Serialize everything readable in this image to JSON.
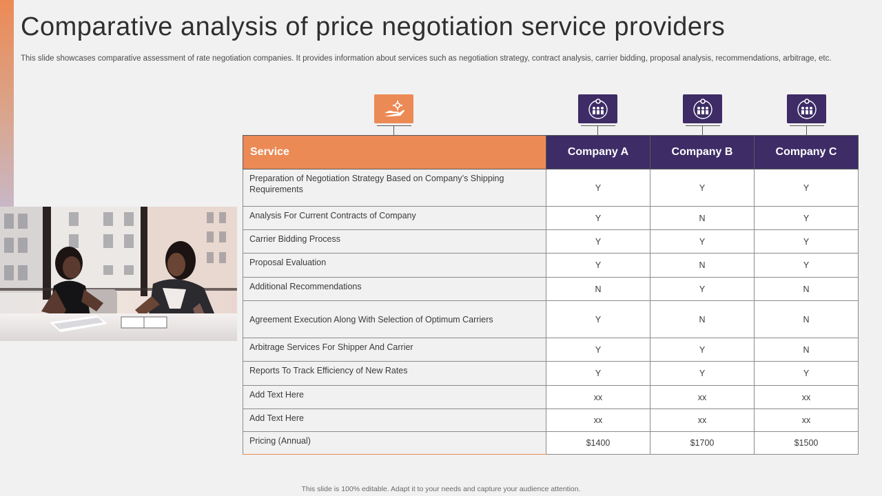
{
  "slide": {
    "title": "Comparative analysis of price negotiation service providers",
    "subtitle": "This slide showcases comparative assessment of rate negotiation companies. It provides information about services such as negotiation strategy, contract analysis, carrier bidding, proposal analysis, recommendations, arbitrage, etc.",
    "footer": "This slide is 100% editable.  Adapt it to your  needs and capture your audience attention."
  },
  "colors": {
    "accent": "#ec8a55",
    "company_header": "#3d2c66",
    "background": "#f1f1f1"
  },
  "icons": {
    "service": "hand-gear-icon",
    "company": "team-globe-gear-icon"
  },
  "table": {
    "header": {
      "service": "Service",
      "companies": [
        "Company A",
        "Company B",
        "Company C"
      ]
    },
    "rows": [
      {
        "service": "Preparation  of  Negotiation  Strategy  Based  on  Company’s  Shipping  Requirements",
        "values": [
          "Y",
          "Y",
          "Y"
        ]
      },
      {
        "service": "Analysis For  Current  Contracts  of  Company",
        "values": [
          "Y",
          "N",
          "Y"
        ]
      },
      {
        "service": "Carrier  Bidding  Process",
        "values": [
          "Y",
          "Y",
          "Y"
        ]
      },
      {
        "service": "Proposal  Evaluation",
        "values": [
          "Y",
          "N",
          "Y"
        ]
      },
      {
        "service": "Additional  Recommendations",
        "values": [
          "N",
          "Y",
          "N"
        ]
      },
      {
        "service": "Agreement  Execution  Along  With  Selection  of  Optimum  Carriers",
        "values": [
          "Y",
          "N",
          "N"
        ]
      },
      {
        "service": "Arbitrage  Services  For  Shipper  And  Carrier",
        "values": [
          "Y",
          "Y",
          "N"
        ]
      },
      {
        "service": "Reports  To  Track  Efficiency  of  New  Rates",
        "values": [
          "Y",
          "Y",
          "Y"
        ]
      },
      {
        "service": "Add Text Here",
        "values": [
          "xx",
          "xx",
          "xx"
        ]
      },
      {
        "service": "Add Text Here",
        "values": [
          "xx",
          "xx",
          "xx"
        ]
      },
      {
        "service": "Pricing  (Annual)",
        "values": [
          "$1400",
          "$1700",
          "$1500"
        ]
      }
    ]
  }
}
